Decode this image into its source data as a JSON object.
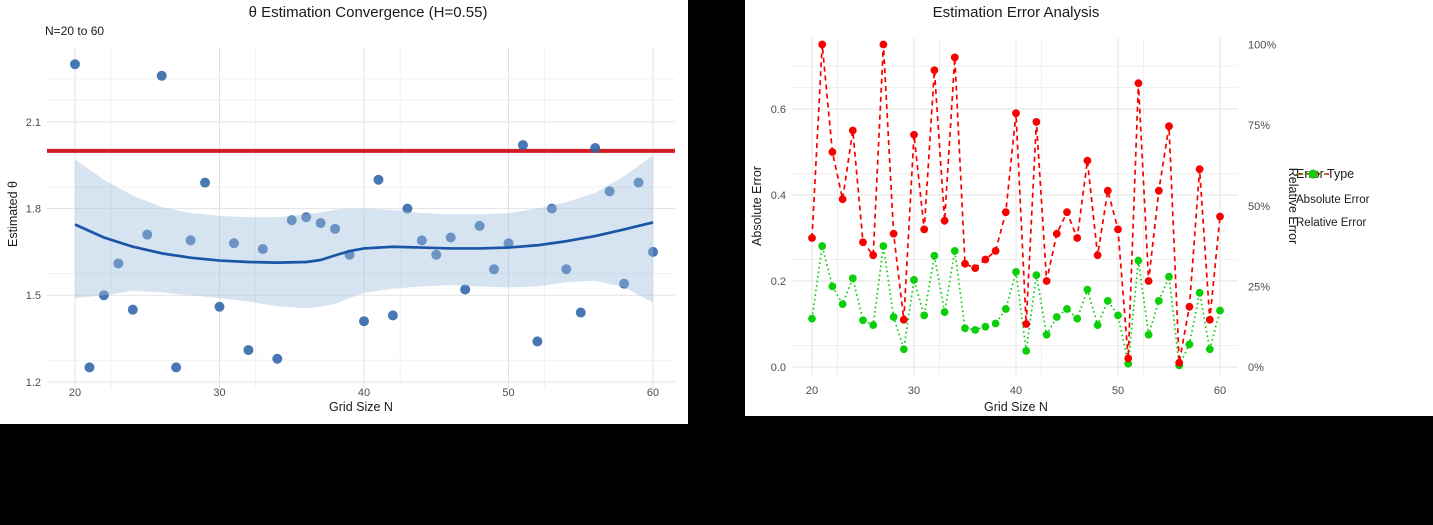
{
  "chart_data": [
    {
      "type": "scatter",
      "title": "θ Estimation Convergence (H=0.55)",
      "annotation": "N=20 to 60",
      "xlabel": "Grid Size N",
      "ylabel": "Estimated θ",
      "xlim": [
        20,
        60
      ],
      "ylim": [
        1.2,
        2.3
      ],
      "x_ticks": [
        20,
        30,
        40,
        50,
        60
      ],
      "y_ticks": [
        1.2,
        1.5,
        1.8,
        2.1
      ],
      "grid": "on",
      "point_color": "#2E65A8",
      "reference_line": {
        "theta": 2.0,
        "color": "#D21D23"
      },
      "points": {
        "N": [
          20,
          21,
          22,
          23,
          24,
          25,
          26,
          27,
          28,
          29,
          30,
          31,
          32,
          33,
          34,
          35,
          36,
          37,
          38,
          39,
          40,
          41,
          42,
          43,
          44,
          45,
          46,
          47,
          48,
          49,
          50,
          51,
          52,
          53,
          54,
          55,
          56,
          57,
          58,
          59,
          60
        ],
        "theta": [
          2.3,
          1.25,
          1.5,
          1.61,
          1.45,
          1.71,
          2.26,
          1.25,
          1.69,
          1.89,
          1.46,
          1.68,
          1.31,
          1.66,
          1.28,
          1.76,
          1.77,
          1.75,
          1.73,
          1.64,
          1.41,
          1.9,
          1.43,
          1.8,
          1.69,
          1.64,
          1.7,
          1.52,
          1.74,
          1.59,
          1.68,
          2.02,
          1.34,
          1.8,
          1.59,
          1.44,
          2.01,
          1.86,
          1.54,
          1.89,
          1.65
        ]
      },
      "smooth": {
        "line_color": "#1A55A6",
        "band_color": "#9DBCDD",
        "N": [
          20,
          22,
          24,
          26,
          28,
          30,
          32,
          34,
          36,
          37,
          38,
          39,
          40,
          42,
          44,
          46,
          48,
          50,
          52,
          54,
          56,
          58,
          60
        ],
        "fit": [
          1.745,
          1.7,
          1.668,
          1.645,
          1.63,
          1.62,
          1.615,
          1.613,
          1.615,
          1.622,
          1.638,
          1.653,
          1.662,
          1.668,
          1.665,
          1.662,
          1.662,
          1.665,
          1.673,
          1.687,
          1.705,
          1.728,
          1.752
        ],
        "upper": [
          1.97,
          1.9,
          1.845,
          1.805,
          1.785,
          1.775,
          1.77,
          1.77,
          1.78,
          1.787,
          1.795,
          1.8,
          1.8,
          1.795,
          1.785,
          1.78,
          1.78,
          1.785,
          1.8,
          1.822,
          1.855,
          1.912,
          1.985
        ],
        "lower": [
          1.49,
          1.5,
          1.515,
          1.51,
          1.5,
          1.49,
          1.478,
          1.462,
          1.455,
          1.46,
          1.47,
          1.49,
          1.508,
          1.523,
          1.53,
          1.535,
          1.53,
          1.527,
          1.53,
          1.545,
          1.55,
          1.528,
          1.475
        ]
      }
    },
    {
      "type": "line",
      "title": "Estimation Error Analysis",
      "xlabel": "Grid Size N",
      "ylabel_left": "Absolute Error",
      "ylabel_right": "Relative Error",
      "xlim": [
        20,
        60
      ],
      "ylim_left": [
        0.0,
        0.75
      ],
      "x_ticks": [
        20,
        30,
        40,
        50,
        60
      ],
      "y_ticks_left": [
        0.0,
        0.2,
        0.4,
        0.6
      ],
      "y_ticks_right_pct": [
        0,
        25,
        50,
        75,
        100
      ],
      "y_ticks_right_labels": [
        "0%",
        "25%",
        "50%",
        "75%",
        "100%"
      ],
      "right_axis_abs_at_100pct": 0.75,
      "grid": "on",
      "N": [
        20,
        21,
        22,
        23,
        24,
        25,
        26,
        27,
        28,
        29,
        30,
        31,
        32,
        33,
        34,
        35,
        36,
        37,
        38,
        39,
        40,
        41,
        42,
        43,
        44,
        45,
        46,
        47,
        48,
        49,
        50,
        51,
        52,
        53,
        54,
        55,
        56,
        57,
        58,
        59,
        60
      ],
      "series": [
        {
          "name": "Absolute Error",
          "color": "#F60000",
          "linetype": "dashed",
          "values": [
            0.3,
            0.75,
            0.5,
            0.39,
            0.55,
            0.29,
            0.26,
            0.75,
            0.31,
            0.11,
            0.54,
            0.32,
            0.69,
            0.34,
            0.72,
            0.24,
            0.23,
            0.25,
            0.27,
            0.36,
            0.59,
            0.1,
            0.57,
            0.2,
            0.31,
            0.36,
            0.3,
            0.48,
            0.26,
            0.41,
            0.32,
            0.02,
            0.66,
            0.2,
            0.41,
            0.56,
            0.01,
            0.14,
            0.46,
            0.11,
            0.35
          ]
        },
        {
          "name": "Relative Error",
          "color": "#0ACF0A",
          "linetype": "dotted",
          "values_pct": [
            15,
            37.5,
            25,
            19.5,
            27.5,
            14.5,
            13,
            37.5,
            15.5,
            5.5,
            27,
            16,
            34.5,
            17,
            36,
            12,
            11.5,
            12.5,
            13.5,
            18,
            29.5,
            5,
            28.5,
            10,
            15.5,
            18,
            15,
            24,
            13,
            20.5,
            16,
            1,
            33,
            10,
            20.5,
            28,
            0.5,
            7,
            23,
            5.5,
            17.5
          ]
        }
      ],
      "legend": {
        "title": "Error Type",
        "entries": [
          {
            "label": "Absolute Error",
            "color": "#F60000"
          },
          {
            "label": "Relative Error",
            "color": "#0ACF0A"
          }
        ]
      }
    }
  ],
  "theme": {
    "panel_bg": "#FFFFFF",
    "page_bg": "#000000",
    "grid_major": "#E3E3E3",
    "grid_minor": "#F0F0F0",
    "tick_text": "#4D4D4D",
    "title_text": "#1A1A1A"
  }
}
